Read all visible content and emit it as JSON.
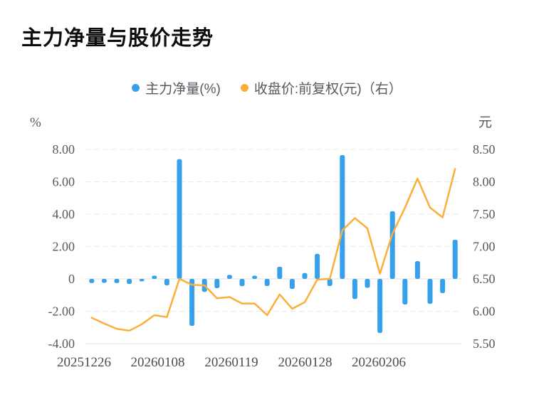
{
  "title": "主力净量与股价走势",
  "legend": [
    {
      "label": "主力净量(%)",
      "color": "#36A0EA"
    },
    {
      "label": "收盘价:前复权(元)（右）",
      "color": "#FBAF3A"
    }
  ],
  "colors": {
    "bar": "#36A0EA",
    "line": "#FBAF3A",
    "grid": "#e9e9e9",
    "zero_line": "#dcdcdc",
    "axis_line": "#e2e2e2",
    "tick_text": "#595959",
    "x_label_text": "#4d4d4d"
  },
  "chart_data": {
    "type": "bar+line",
    "title": "主力净量与股价走势",
    "grid": "horizontal dashed",
    "legend_position": "top-center",
    "x_tick_labels": [
      "20251226",
      "20260108",
      "20260119",
      "20260128",
      "20260206"
    ],
    "left_axis": {
      "unit": "%",
      "min": -4,
      "max": 8,
      "ticks": [
        "8.00",
        "6.00",
        "4.00",
        "2.00",
        "0",
        "-2.00",
        "-4.00"
      ]
    },
    "right_axis": {
      "unit": "元",
      "min": 5.5,
      "max": 8.5,
      "ticks": [
        "8.50",
        "8.00",
        "7.50",
        "7.00",
        "6.50",
        "6.00",
        "5.50"
      ]
    },
    "series": [
      {
        "name": "主力净量(%)",
        "type": "bar",
        "axis": "left",
        "color": "#36A0EA",
        "values": [
          -0.26,
          -0.24,
          -0.26,
          -0.31,
          -0.15,
          0.2,
          -0.4,
          7.4,
          -2.9,
          -0.8,
          -0.57,
          0.25,
          -0.45,
          0.2,
          -0.44,
          0.75,
          -0.62,
          0.36,
          1.55,
          -0.44,
          7.65,
          -1.24,
          -0.55,
          -3.34,
          4.18,
          -1.58,
          1.1,
          -1.54,
          -0.88,
          2.42
        ]
      },
      {
        "name": "收盘价:前复权(元)（右）",
        "type": "line",
        "axis": "right",
        "color": "#FBAF3A",
        "values": [
          5.9,
          5.81,
          5.73,
          5.7,
          5.8,
          5.94,
          5.91,
          6.5,
          6.41,
          6.4,
          6.2,
          6.22,
          6.12,
          6.12,
          5.94,
          6.26,
          6.04,
          6.14,
          6.49,
          6.5,
          7.25,
          7.44,
          7.28,
          6.58,
          7.2,
          7.6,
          8.05,
          7.6,
          7.45,
          8.2
        ]
      }
    ]
  }
}
